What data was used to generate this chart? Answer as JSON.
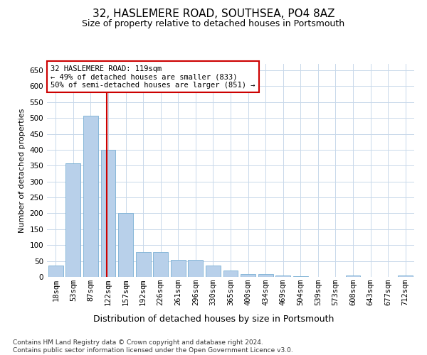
{
  "title": "32, HASLEMERE ROAD, SOUTHSEA, PO4 8AZ",
  "subtitle": "Size of property relative to detached houses in Portsmouth",
  "xlabel": "Distribution of detached houses by size in Portsmouth",
  "ylabel": "Number of detached properties",
  "bar_values": [
    35,
    357,
    507,
    400,
    200,
    78,
    78,
    53,
    53,
    35,
    20,
    10,
    8,
    5,
    2,
    0,
    0,
    5,
    0,
    0,
    5
  ],
  "bar_labels": [
    "18sqm",
    "53sqm",
    "87sqm",
    "122sqm",
    "157sqm",
    "192sqm",
    "226sqm",
    "261sqm",
    "296sqm",
    "330sqm",
    "365sqm",
    "400sqm",
    "434sqm",
    "469sqm",
    "504sqm",
    "539sqm",
    "573sqm",
    "608sqm",
    "643sqm",
    "677sqm",
    "712sqm"
  ],
  "bar_color": "#b8d0ea",
  "bar_edge_color": "#7aafd4",
  "vline_index": 3,
  "vline_color": "#cc0000",
  "annotation_text": "32 HASLEMERE ROAD: 119sqm\n← 49% of detached houses are smaller (833)\n50% of semi-detached houses are larger (851) →",
  "annotation_box_color": "#ffffff",
  "annotation_box_edge": "#cc0000",
  "annotation_fontsize": 7.5,
  "ylim": [
    0,
    670
  ],
  "yticks": [
    0,
    50,
    100,
    150,
    200,
    250,
    300,
    350,
    400,
    450,
    500,
    550,
    600,
    650
  ],
  "title_fontsize": 11,
  "subtitle_fontsize": 9,
  "xlabel_fontsize": 9,
  "ylabel_fontsize": 8,
  "tick_fontsize": 7.5,
  "footer_text": "Contains HM Land Registry data © Crown copyright and database right 2024.\nContains public sector information licensed under the Open Government Licence v3.0.",
  "footer_fontsize": 6.5,
  "background_color": "#ffffff",
  "grid_color": "#c8d8ea"
}
